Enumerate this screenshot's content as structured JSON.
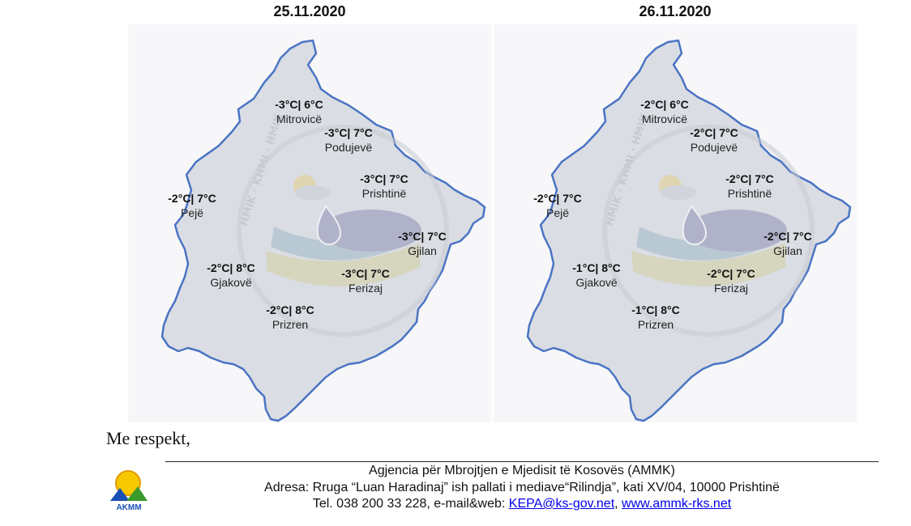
{
  "maps": [
    {
      "date": "25.11.2020",
      "cities": {
        "mitrovice": {
          "temp": "-3°C| 6°C",
          "name": "Mitrovicë"
        },
        "podujeve": {
          "temp": "-3°C| 7°C",
          "name": "Podujevë"
        },
        "prishtine": {
          "temp": "-3°C| 7°C",
          "name": "Prishtinë"
        },
        "peje": {
          "temp": "-2°C| 7°C",
          "name": "Pejë"
        },
        "gjilan": {
          "temp": "-3°C| 7°C",
          "name": "Gjilan"
        },
        "gjakove": {
          "temp": "-2°C| 8°C",
          "name": "Gjakovë"
        },
        "ferizaj": {
          "temp": "-3°C| 7°C",
          "name": "Ferizaj"
        },
        "prizren": {
          "temp": "-2°C| 8°C",
          "name": "Prizren"
        }
      }
    },
    {
      "date": "26.11.2020",
      "cities": {
        "mitrovice": {
          "temp": "-2°C| 6°C",
          "name": "Mitrovicë"
        },
        "podujeve": {
          "temp": "-2°C| 7°C",
          "name": "Podujevë"
        },
        "prishtine": {
          "temp": "-2°C| 7°C",
          "name": "Prishtinë"
        },
        "peje": {
          "temp": "-2°C| 7°C",
          "name": "Pejë"
        },
        "gjilan": {
          "temp": "-2°C| 7°C",
          "name": "Gjilan"
        },
        "gjakove": {
          "temp": "-1°C| 8°C",
          "name": "Gjakovë"
        },
        "ferizaj": {
          "temp": "-2°C| 7°C",
          "name": "Ferizaj"
        },
        "prizren": {
          "temp": "-1°C| 8°C",
          "name": "Prizren"
        }
      }
    }
  ],
  "watermark_text": "HMIK · KHMI · HMIK",
  "closing": "Me respekt,",
  "footer": {
    "logo_text": "AKMM",
    "agency": "Agjencia për Mbrojtjen e Mjedisit të Kosovës (AMMK)",
    "address": "Adresa: Rruga “Luan Haradinaj”  ish pallati i mediave“Rilindja”, kati XV/04, 10000 Prishtinë",
    "tel_prefix": "Tel. 038 200 33 228, e-mail&web: ",
    "email": "KEPA@ks-gov.net",
    "separator": ", ",
    "website": "www.ammk-rks.net"
  },
  "colors": {
    "border": "#4a74c4",
    "fill": "#dadde3",
    "link": "#0000ee"
  }
}
